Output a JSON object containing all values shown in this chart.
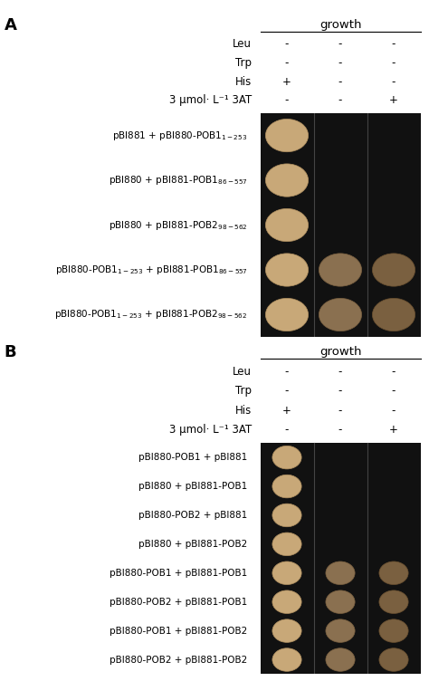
{
  "panel_A_label": "A",
  "panel_B_label": "B",
  "growth_header": "growth",
  "conditions": [
    "Leu",
    "Trp",
    "His",
    "3 μmol· L⁻¹ 3AT"
  ],
  "header_cols_A": [
    [
      "-",
      "-",
      "-"
    ],
    [
      "-",
      "-",
      "-"
    ],
    [
      "+",
      "-",
      "-"
    ],
    [
      "-",
      "-",
      "+"
    ]
  ],
  "header_cols_B": [
    [
      "-",
      "-",
      "-"
    ],
    [
      "-",
      "-",
      "-"
    ],
    [
      "+",
      "-",
      "-"
    ],
    [
      "-",
      "-",
      "+"
    ]
  ],
  "rows_A": [
    [
      "pBI881 + pBI880-POB1",
      "1-253"
    ],
    [
      "pBI880 + pBI881-POB1",
      "86-557"
    ],
    [
      "pBI880 + pBI881-POB2 ",
      "98-562"
    ],
    [
      "pBI880-POB1",
      "1-253",
      " + pBI881-POB1",
      "86-557"
    ],
    [
      "pBI880-POB1",
      "1-253",
      " + pBI881-POB2 ",
      "98-562"
    ]
  ],
  "rows_A_display": [
    "pBI881 + pBI880-POB1$_{1-253}$",
    "pBI880 + pBI881-POB1$_{86-557}$",
    "pBI880 + pBI881-POB2$_{98-562}$",
    "pBI880-POB1$_{1-253}$ + pBI881-POB1$_{86-557}$",
    "pBI880-POB1$_{1-253}$ + pBI881-POB2$_{98-562}$"
  ],
  "rows_B_display": [
    "pBI880-POB1 + pBI881",
    "pBI880 + pBI881-POB1",
    "pBI880-POB2 + pBI881",
    "pBI880 + pBI881-POB2",
    "pBI880-POB1 + pBI881-POB1",
    "pBI880-POB2 + pBI881-POB1",
    "pBI880-POB1 + pBI881-POB2",
    "pBI880-POB2 + pBI881-POB2"
  ],
  "spots_A": [
    [
      true,
      false,
      false
    ],
    [
      true,
      false,
      false
    ],
    [
      true,
      false,
      false
    ],
    [
      true,
      true,
      true
    ],
    [
      true,
      true,
      true
    ]
  ],
  "spots_B": [
    [
      true,
      false,
      false
    ],
    [
      true,
      false,
      false
    ],
    [
      true,
      false,
      false
    ],
    [
      true,
      false,
      false
    ],
    [
      true,
      true,
      true
    ],
    [
      true,
      true,
      true
    ],
    [
      true,
      true,
      true
    ],
    [
      true,
      true,
      true
    ]
  ],
  "spot_color_col0": "#c8a878",
  "spot_color_col1": "#8a7050",
  "spot_color_col2": "#7a6040",
  "bg_color": "#111111",
  "sep_color": "#444444",
  "fig_bg": "#ffffff",
  "fs_row": 7.5,
  "fs_cond": 8.5,
  "fs_header": 9.5,
  "fs_panel": 13
}
